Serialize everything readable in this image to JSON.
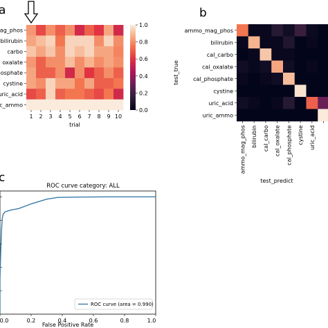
{
  "panels": {
    "a": "a",
    "b": "b",
    "c": "c"
  },
  "chart_data": [
    {
      "panel": "a",
      "type": "heatmap",
      "title": "",
      "xlabel": "trial",
      "ylabel": "",
      "x_categories": [
        "1",
        "2",
        "3",
        "4",
        "5",
        "6",
        "7",
        "8",
        "9",
        "10"
      ],
      "y_categories": [
        "mag_phos",
        "bilirubin",
        "carbo",
        "oxalate",
        "phosphate",
        "cystine",
        "uric_acid",
        "roc_ammo"
      ],
      "values": [
        [
          0.82,
          0.65,
          0.8,
          0.7,
          0.8,
          0.55,
          0.7,
          0.6,
          0.85,
          0.55
        ],
        [
          0.85,
          0.9,
          0.95,
          0.75,
          0.95,
          0.95,
          0.95,
          0.8,
          0.95,
          0.8
        ],
        [
          0.92,
          0.85,
          0.92,
          0.8,
          0.95,
          0.9,
          0.95,
          0.85,
          0.85,
          0.78
        ],
        [
          0.82,
          0.7,
          0.8,
          0.8,
          0.9,
          0.8,
          0.88,
          0.8,
          0.85,
          0.8
        ],
        [
          0.85,
          0.7,
          0.7,
          0.8,
          0.55,
          0.8,
          0.6,
          0.7,
          0.8,
          0.7
        ],
        [
          0.85,
          0.8,
          0.95,
          0.85,
          0.85,
          0.75,
          0.85,
          0.7,
          0.7,
          0.75
        ],
        [
          0.65,
          0.7,
          0.95,
          0.7,
          0.75,
          0.75,
          0.7,
          0.65,
          0.75,
          0.55
        ],
        [
          1.0,
          1.0,
          1.0,
          1.0,
          1.0,
          1.0,
          1.0,
          1.0,
          1.0,
          1.0
        ]
      ],
      "colorbar_ticks": [
        "0.0",
        "0.2",
        "0.4",
        "0.6",
        "0.8",
        "1.0"
      ],
      "vmin": 0,
      "vmax": 1,
      "colormap": "rocket",
      "arrow_marker_column": "1"
    },
    {
      "panel": "b",
      "type": "heatmap",
      "title": "",
      "xlabel": "test_predict",
      "ylabel": "test_true",
      "x_categories": [
        "ammo_mag_phos",
        "bilirubin",
        "cal_carbo",
        "cal_oxalate",
        "cal_phosphate",
        "cystine",
        "uric_acid",
        ""
      ],
      "y_categories": [
        "ammo_mag_phos",
        "bilirubin",
        "cal_carbo",
        "cal_oxalate",
        "cal_phosphate",
        "cystine",
        "uric_acid",
        "uric_ammo"
      ],
      "values": [
        [
          0.75,
          0.02,
          0.02,
          0.12,
          0.05,
          0.18,
          0.03,
          0.0
        ],
        [
          0.02,
          0.88,
          0.02,
          0.02,
          0.1,
          0.0,
          0.02,
          0.0
        ],
        [
          0.0,
          0.02,
          0.92,
          0.02,
          0.02,
          0.0,
          0.0,
          0.0
        ],
        [
          0.05,
          0.02,
          0.05,
          0.85,
          0.05,
          0.0,
          0.02,
          0.0
        ],
        [
          0.02,
          0.0,
          0.02,
          0.05,
          0.9,
          0.0,
          0.0,
          0.0
        ],
        [
          0.0,
          0.0,
          0.0,
          0.0,
          0.0,
          0.98,
          0.0,
          0.0
        ],
        [
          0.05,
          0.02,
          0.0,
          0.02,
          0.12,
          0.0,
          0.7,
          0.3
        ],
        [
          0.0,
          0.0,
          0.0,
          0.0,
          0.0,
          0.0,
          0.0,
          1.0
        ]
      ],
      "vmin": 0,
      "vmax": 1,
      "colormap": "rocket"
    },
    {
      "panel": "c",
      "type": "line",
      "title": "ROC curve category: ALL",
      "xlabel": "False Positive Rate",
      "ylabel": "",
      "x_ticks": [
        "0.0",
        "0.2",
        "0.4",
        "0.6",
        "0.8",
        "1.0"
      ],
      "xlim": [
        0,
        1
      ],
      "ylim": [
        0,
        1.05
      ],
      "series": [
        {
          "name": "ROC curve (area = 0.990)",
          "color": "#3a7ca5",
          "x": [
            0.0,
            0.0,
            0.005,
            0.01,
            0.015,
            0.02,
            0.03,
            0.05,
            0.08,
            0.12,
            0.2,
            0.3,
            0.37,
            0.5,
            0.7,
            1.0
          ],
          "y": [
            0.0,
            0.3,
            0.55,
            0.72,
            0.82,
            0.85,
            0.87,
            0.88,
            0.89,
            0.9,
            0.94,
            0.98,
            0.995,
            0.998,
            1.0,
            1.0
          ]
        }
      ],
      "grid": false,
      "legend_position": "lower-right"
    }
  ]
}
